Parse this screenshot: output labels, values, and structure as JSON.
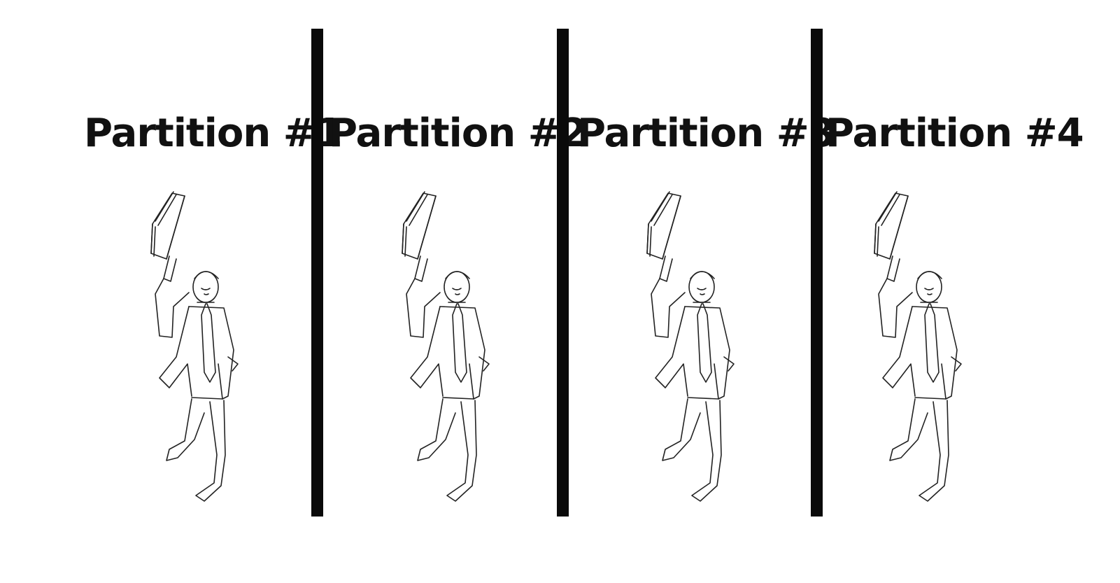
{
  "partitions": [
    {
      "label": "Partition #1"
    },
    {
      "label": "Partition #2"
    },
    {
      "label": "Partition #3"
    },
    {
      "label": "Partition #4"
    }
  ],
  "colors": {
    "background": "#ffffff",
    "text": "#111111",
    "divider": "#0a0a0a",
    "line_art": "#222222"
  },
  "icons": {
    "figure": "businessman-with-books-icon"
  }
}
